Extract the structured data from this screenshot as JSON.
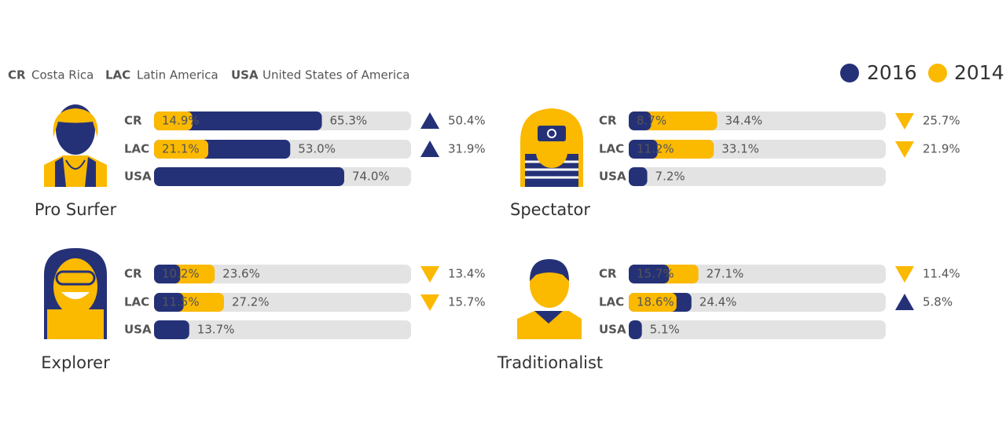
{
  "abbreviations": [
    {
      "code": "CR",
      "name": "Costa Rica",
      "color": "#253177"
    },
    {
      "code": "LAC",
      "name": "Latin America",
      "color": "#fbb900"
    },
    {
      "code": "USA",
      "name": "United States of America",
      "color": "#e87722"
    }
  ],
  "chart_data": [
    {
      "type": "bar",
      "title": "Pro Surfer",
      "categories": [
        "CR",
        "LAC",
        "USA"
      ],
      "xlim": [
        0,
        100
      ],
      "series": [
        {
          "name": "2016",
          "color": "#253177",
          "values": [
            65.3,
            53.0,
            74.0
          ],
          "value_labels": [
            "65.3%",
            "53.0%",
            "74.0%"
          ]
        },
        {
          "name": "2014",
          "color": "#fbb900",
          "values": [
            14.9,
            21.1,
            null
          ],
          "value_labels": [
            "14.9%",
            "21.1%",
            null
          ]
        }
      ],
      "change": {
        "values": [
          50.4,
          31.9,
          null
        ],
        "value_labels": [
          "50.4%",
          "31.9%",
          null
        ],
        "direction": [
          "up",
          "up",
          null
        ]
      }
    },
    {
      "type": "bar",
      "title": "Spectator",
      "categories": [
        "CR",
        "LAC",
        "USA"
      ],
      "xlim": [
        0,
        100
      ],
      "series": [
        {
          "name": "2016",
          "color": "#253177",
          "values": [
            8.7,
            11.2,
            7.2
          ],
          "value_labels": [
            "8.7%",
            "11.2%",
            "7.2%"
          ]
        },
        {
          "name": "2014",
          "color": "#fbb900",
          "values": [
            34.4,
            33.1,
            null
          ],
          "value_labels": [
            "34.4%",
            "33.1%",
            null
          ]
        }
      ],
      "change": {
        "values": [
          25.7,
          21.9,
          null
        ],
        "value_labels": [
          "25.7%",
          "21.9%",
          null
        ],
        "direction": [
          "down",
          "down",
          null
        ]
      }
    },
    {
      "type": "bar",
      "title": "Explorer",
      "categories": [
        "CR",
        "LAC",
        "USA"
      ],
      "xlim": [
        0,
        100
      ],
      "series": [
        {
          "name": "2016",
          "color": "#253177",
          "values": [
            10.2,
            11.5,
            13.7
          ],
          "value_labels": [
            "10.2%",
            "11.5%",
            "13.7%"
          ]
        },
        {
          "name": "2014",
          "color": "#fbb900",
          "values": [
            23.6,
            27.2,
            null
          ],
          "value_labels": [
            "23.6%",
            "27.2%",
            null
          ]
        }
      ],
      "change": {
        "values": [
          13.4,
          15.7,
          null
        ],
        "value_labels": [
          "13.4%",
          "15.7%",
          null
        ],
        "direction": [
          "down",
          "down",
          null
        ]
      }
    },
    {
      "type": "bar",
      "title": "Traditionalist",
      "categories": [
        "CR",
        "LAC",
        "USA"
      ],
      "xlim": [
        0,
        100
      ],
      "series": [
        {
          "name": "2016",
          "color": "#253177",
          "values": [
            15.7,
            24.4,
            5.1
          ],
          "value_labels": [
            "15.7%",
            "24.4%",
            "5.1%"
          ]
        },
        {
          "name": "2014",
          "color": "#fbb900",
          "values": [
            27.1,
            18.6,
            null
          ],
          "value_labels": [
            "27.1%",
            "18.6%",
            null
          ]
        }
      ],
      "change": {
        "values": [
          11.4,
          5.8,
          null
        ],
        "value_labels": [
          "11.4%",
          "5.8%",
          null
        ],
        "direction": [
          "down",
          "up",
          null
        ]
      }
    }
  ]
}
